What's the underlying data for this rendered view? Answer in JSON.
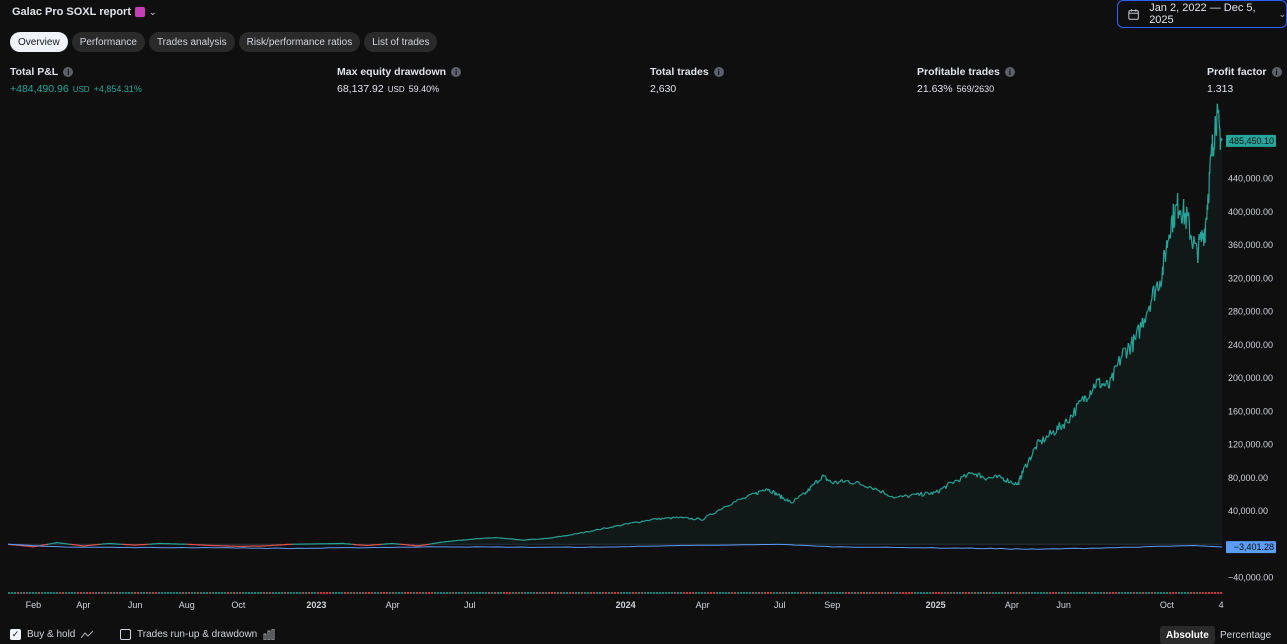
{
  "header": {
    "title": "Galac Pro SOXL report",
    "date_range": "Jan 2, 2022 — Dec 5, 2025"
  },
  "tabs": [
    {
      "label": "Overview",
      "active": true
    },
    {
      "label": "Performance"
    },
    {
      "label": "Trades analysis"
    },
    {
      "label": "Risk/performance ratios"
    },
    {
      "label": "List of trades"
    }
  ],
  "stats": {
    "total_pnl": {
      "label": "Total P&L",
      "value": "+484,490.96",
      "unit": "USD",
      "sub": "+4,854.31%"
    },
    "max_dd": {
      "label": "Max equity drawdown",
      "value": "68,137.92",
      "unit": "USD",
      "sub": "59.40%"
    },
    "total_trades": {
      "label": "Total trades",
      "value": "2,630"
    },
    "profitable": {
      "label": "Profitable trades",
      "value": "21.63%",
      "sub": "569/2630"
    },
    "profit_factor": {
      "label": "Profit factor",
      "value": "1.313"
    }
  },
  "chart_data": {
    "type": "line",
    "y_ticks": [
      "440,000.00",
      "400,000.00",
      "360,000.00",
      "320,000.00",
      "280,000.00",
      "240,000.00",
      "200,000.00",
      "160,000.00",
      "120,000.00",
      "80,000.00",
      "40,000.00",
      "−40,000.00"
    ],
    "y_tick_values": [
      440000,
      400000,
      360000,
      320000,
      280000,
      240000,
      200000,
      160000,
      120000,
      80000,
      40000,
      -40000
    ],
    "ylim": [
      -55000,
      525000
    ],
    "x_ticks": [
      "Feb",
      "Apr",
      "Jun",
      "Aug",
      "Oct",
      "2023",
      "Apr",
      "Jul",
      "2024",
      "Apr",
      "Jul",
      "Sep",
      "2025",
      "Apr",
      "Jun",
      "Oct",
      "4"
    ],
    "x_tick_dates": [
      "2022-02-01",
      "2022-04-01",
      "2022-06-01",
      "2022-08-01",
      "2022-10-01",
      "2023-01-01",
      "2023-04-01",
      "2023-07-01",
      "2024-01-01",
      "2024-04-01",
      "2024-07-01",
      "2024-09-01",
      "2025-01-01",
      "2025-04-01",
      "2025-06-01",
      "2025-10-01",
      "2025-12-04"
    ],
    "x_range": [
      "2022-01-02",
      "2025-12-05"
    ],
    "series": [
      {
        "type": "equity",
        "color": "#26a69a",
        "negative_color": "#ef5350",
        "points": [
          [
            "2022-01-02",
            0
          ],
          [
            "2022-02-01",
            -3000
          ],
          [
            "2022-03-01",
            2000
          ],
          [
            "2022-04-01",
            -2000
          ],
          [
            "2022-05-01",
            1000
          ],
          [
            "2022-06-01",
            -1000
          ],
          [
            "2022-07-01",
            1000
          ],
          [
            "2022-08-01",
            0
          ],
          [
            "2022-09-01",
            -1500
          ],
          [
            "2022-10-01",
            -2500
          ],
          [
            "2022-11-01",
            -2000
          ],
          [
            "2022-12-01",
            0
          ],
          [
            "2023-01-01",
            500
          ],
          [
            "2023-02-01",
            1000
          ],
          [
            "2023-03-01",
            -1500
          ],
          [
            "2023-04-01",
            1000
          ],
          [
            "2023-05-01",
            -2000
          ],
          [
            "2023-06-01",
            3000
          ],
          [
            "2023-07-01",
            6000
          ],
          [
            "2023-08-01",
            8000
          ],
          [
            "2023-09-01",
            5000
          ],
          [
            "2023-10-01",
            7000
          ],
          [
            "2023-11-01",
            12000
          ],
          [
            "2023-12-01",
            18000
          ],
          [
            "2024-01-01",
            24000
          ],
          [
            "2024-02-01",
            30000
          ],
          [
            "2024-03-01",
            32000
          ],
          [
            "2024-04-01",
            30000
          ],
          [
            "2024-05-01",
            48000
          ],
          [
            "2024-06-01",
            60000
          ],
          [
            "2024-06-15",
            68000
          ],
          [
            "2024-07-01",
            58000
          ],
          [
            "2024-07-15",
            50000
          ],
          [
            "2024-08-01",
            62000
          ],
          [
            "2024-08-20",
            82000
          ],
          [
            "2024-09-01",
            74000
          ],
          [
            "2024-09-20",
            76000
          ],
          [
            "2024-10-15",
            70000
          ],
          [
            "2024-11-15",
            56000
          ],
          [
            "2024-12-15",
            60000
          ],
          [
            "2025-01-01",
            62000
          ],
          [
            "2025-01-20",
            74000
          ],
          [
            "2025-02-15",
            86000
          ],
          [
            "2025-03-01",
            80000
          ],
          [
            "2025-03-20",
            80000
          ],
          [
            "2025-04-08",
            72000
          ],
          [
            "2025-04-15",
            90000
          ],
          [
            "2025-05-01",
            120000
          ],
          [
            "2025-05-20",
            135000
          ],
          [
            "2025-06-05",
            148000
          ],
          [
            "2025-06-25",
            175000
          ],
          [
            "2025-07-10",
            195000
          ],
          [
            "2025-07-25",
            190000
          ],
          [
            "2025-08-10",
            230000
          ],
          [
            "2025-08-25",
            245000
          ],
          [
            "2025-09-10",
            290000
          ],
          [
            "2025-09-25",
            325000
          ],
          [
            "2025-10-05",
            385000
          ],
          [
            "2025-10-15",
            410000
          ],
          [
            "2025-10-25",
            390000
          ],
          [
            "2025-11-05",
            350000
          ],
          [
            "2025-11-15",
            380000
          ],
          [
            "2025-11-22",
            460000
          ],
          [
            "2025-11-28",
            515000
          ],
          [
            "2025-12-05",
            485450
          ]
        ],
        "last_label": "485,450.10"
      },
      {
        "type": "buy-and-hold",
        "color": "#5b9cf6",
        "points": [
          [
            "2022-01-02",
            0
          ],
          [
            "2022-03-01",
            -3000
          ],
          [
            "2022-06-01",
            -4000
          ],
          [
            "2022-09-01",
            -4000
          ],
          [
            "2022-12-01",
            -5000
          ],
          [
            "2023-03-01",
            -4000
          ],
          [
            "2023-06-01",
            -3000
          ],
          [
            "2023-09-01",
            -3500
          ],
          [
            "2023-12-01",
            -3500
          ],
          [
            "2024-03-01",
            -1500
          ],
          [
            "2024-05-01",
            -1000
          ],
          [
            "2024-07-01",
            0
          ],
          [
            "2024-09-01",
            -3000
          ],
          [
            "2024-12-01",
            -4000
          ],
          [
            "2025-03-01",
            -5000
          ],
          [
            "2025-05-01",
            -6000
          ],
          [
            "2025-08-01",
            -4000
          ],
          [
            "2025-11-01",
            -1500
          ],
          [
            "2025-12-05",
            -3401
          ]
        ],
        "last_label": "−3,401.28"
      }
    ]
  },
  "footer": {
    "buy_hold": "Buy & hold",
    "runup": "Trades run-up & drawdown",
    "absolute": "Absolute",
    "percentage": "Percentage"
  }
}
